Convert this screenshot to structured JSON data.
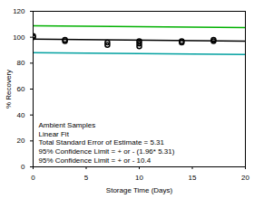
{
  "chart_data": {
    "type": "scatter",
    "xlabel": "Storage Time (Days)",
    "ylabel": "% Recovery",
    "xlim": [
      0,
      20
    ],
    "ylim": [
      0,
      120
    ],
    "xticks": [
      0,
      5,
      10,
      15,
      20
    ],
    "yticks": [
      0,
      20,
      40,
      60,
      80,
      100,
      120
    ],
    "grid": false,
    "annotations": [
      "Ambient Samples",
      "Linear Fit",
      "Total Standard Error of Estimate = 5.31",
      "95% Confidence Limit = + or - (1.96* 5.31)",
      "95% Confidence Limit = + or - 10.4"
    ],
    "series": [
      {
        "type": "scatter",
        "color": "#000000",
        "marker": "circle",
        "x": [
          0,
          0,
          3,
          3,
          7,
          7,
          10,
          10,
          10,
          14,
          14,
          17,
          17
        ],
        "values": [
          101,
          100,
          98,
          97,
          96,
          94,
          97,
          95,
          93,
          97,
          96,
          98,
          97
        ]
      },
      {
        "type": "line",
        "color": "#000000",
        "line_style": "solid",
        "x": [
          0,
          20
        ],
        "values": [
          98.5,
          97
        ]
      },
      {
        "type": "line",
        "color": "#00b000",
        "line_style": "solid",
        "x": [
          0,
          20
        ],
        "values": [
          108.9,
          107.4
        ]
      },
      {
        "type": "line",
        "color": "#00a0a0",
        "line_style": "solid",
        "x": [
          0,
          20
        ],
        "values": [
          88.1,
          86.6
        ]
      }
    ]
  }
}
